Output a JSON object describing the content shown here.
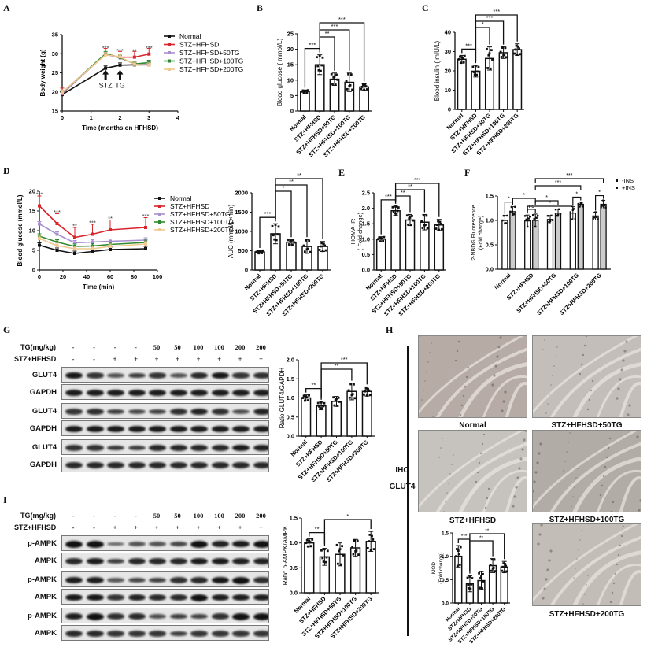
{
  "panels": {
    "A": "A",
    "B": "B",
    "C": "C",
    "D": "D",
    "E": "E",
    "F": "F",
    "G": "G",
    "H": "H",
    "I": "I"
  },
  "groups": [
    "Normal",
    "STZ+HFHSD",
    "STZ+HFHSD+50TG",
    "STZ+HFHSD+100TG",
    "STZ+HFHSD+200TG"
  ],
  "colors": {
    "Normal": "#111111",
    "STZ+HFHSD": "#d9252c",
    "STZ+HFHSD+50TG": "#a88fd0",
    "STZ+HFHSD+100TG": "#2e8a2e",
    "STZ+HFHSD+200TG": "#f0c890"
  },
  "chart_data": [
    {
      "id": "A",
      "type": "line",
      "title": "",
      "xlabel": "Time (months on HFHSD)",
      "ylabel": "Body weight (g)",
      "xlim": [
        0,
        4
      ],
      "ylim": [
        15,
        35
      ],
      "xticks": [
        0,
        1,
        2,
        3,
        4
      ],
      "yticks": [
        15,
        20,
        25,
        30,
        35
      ],
      "x": [
        0,
        1.5,
        2,
        2.5,
        3
      ],
      "series": [
        {
          "name": "Normal",
          "values": [
            19.3,
            26.2,
            27.0,
            27.1,
            27.1
          ]
        },
        {
          "name": "STZ+HFHSD",
          "values": [
            19.5,
            29.9,
            29.1,
            29.1,
            29.9
          ]
        },
        {
          "name": "STZ+HFHSD+50TG",
          "values": [
            19.6,
            29.8,
            28.9,
            27.4,
            27.2
          ]
        },
        {
          "name": "STZ+HFHSD+100TG",
          "values": [
            19.8,
            30.0,
            29.0,
            27.3,
            27.7
          ]
        },
        {
          "name": "STZ+HFHSD+200TG",
          "values": [
            19.9,
            29.7,
            29.2,
            27.2,
            27.0
          ]
        }
      ],
      "annotations": [
        {
          "x": 1.5,
          "text": "***"
        },
        {
          "x": 2,
          "text": "***"
        },
        {
          "x": 2.5,
          "text": "**"
        },
        {
          "x": 3,
          "text": "***"
        },
        {
          "x": 1.5,
          "text": "STZ",
          "arrow": true
        },
        {
          "x": 2,
          "text": "TG",
          "arrow": true
        }
      ],
      "legend": [
        "Normal",
        "STZ+HFHSD",
        "STZ+HFHSD+50TG",
        "STZ+HFHSD+100TG",
        "STZ+HFHSD+200TG"
      ],
      "legend_position": "right"
    },
    {
      "id": "B",
      "type": "bar",
      "ylabel": "Blood glucose ( mmol/L)",
      "ylim": [
        0,
        25
      ],
      "yticks": [
        0,
        5,
        10,
        15,
        20,
        25
      ],
      "categories": [
        "Normal",
        "STZ+HFHSD",
        "STZ+HFHSD+50TG",
        "STZ+HFHSD+100TG",
        "STZ+HFHSD+200TG"
      ],
      "values": [
        6.3,
        15.0,
        10.3,
        9.3,
        7.8
      ],
      "errors": [
        0.5,
        3.2,
        2.0,
        3.0,
        1.0
      ],
      "significance": [
        {
          "from": 0,
          "to": 1,
          "label": "***"
        },
        {
          "from": 1,
          "to": 2,
          "label": "**"
        },
        {
          "from": 1,
          "to": 3,
          "label": "***"
        },
        {
          "from": 1,
          "to": 4,
          "label": "***"
        }
      ]
    },
    {
      "id": "C",
      "type": "bar",
      "ylabel": "Blood insulin ( mIU/L)",
      "ylim": [
        0,
        40
      ],
      "yticks": [
        0,
        10,
        20,
        30,
        40
      ],
      "categories": [
        "Normal",
        "STZ+HFHSD",
        "STZ+HFHSD+50TG",
        "STZ+HFHSD+100TG",
        "STZ+HFHSD+200TG"
      ],
      "values": [
        26.0,
        19.8,
        26.4,
        29.4,
        31.0
      ],
      "errors": [
        2.0,
        3.0,
        6.0,
        3.0,
        3.0
      ],
      "significance": [
        {
          "from": 0,
          "to": 1,
          "label": "***"
        },
        {
          "from": 1,
          "to": 2,
          "label": "*"
        },
        {
          "from": 1,
          "to": 3,
          "label": "***"
        },
        {
          "from": 1,
          "to": 4,
          "label": "***"
        }
      ]
    },
    {
      "id": "D",
      "type": "line",
      "xlabel": "Time (min)",
      "ylabel": "Blood glucose (mmol/L)",
      "xlim": [
        0,
        100
      ],
      "ylim": [
        0,
        20
      ],
      "xticks": [
        0,
        20,
        40,
        60,
        80,
        100
      ],
      "yticks": [
        0,
        5,
        10,
        15,
        20
      ],
      "x": [
        0,
        15,
        30,
        45,
        60,
        90
      ],
      "series": [
        {
          "name": "Normal",
          "values": [
            6.3,
            5.0,
            4.2,
            4.7,
            5.2,
            5.4
          ]
        },
        {
          "name": "STZ+HFHSD",
          "values": [
            16.3,
            11.8,
            8.3,
            9.1,
            10.2,
            10.8
          ]
        },
        {
          "name": "STZ+HFHSD+50TG",
          "values": [
            11.7,
            9.1,
            6.9,
            7.1,
            7.3,
            7.6
          ]
        },
        {
          "name": "STZ+HFHSD+100TG",
          "values": [
            8.6,
            7.1,
            6.0,
            6.1,
            6.5,
            7.0
          ]
        },
        {
          "name": "STZ+HFHSD+200TG",
          "values": [
            8.0,
            6.2,
            5.4,
            5.4,
            6.0,
            6.6
          ]
        }
      ],
      "annotations": [
        {
          "x": 0,
          "text": "***"
        },
        {
          "x": 15,
          "text": "***"
        },
        {
          "x": 30,
          "text": "**"
        },
        {
          "x": 45,
          "text": "***"
        },
        {
          "x": 60,
          "text": "**"
        },
        {
          "x": 90,
          "text": "***"
        }
      ],
      "legend": [
        "Normal",
        "STZ+HFHSD",
        "STZ+HFHSD+50TG",
        "STZ+HFHSD+100TG",
        "STZ+HFHSD+200TG"
      ],
      "legend_position": "right"
    },
    {
      "id": "D-AUC",
      "type": "bar",
      "ylabel": "AUC (mmol/L×min)",
      "ylim": [
        0,
        2000
      ],
      "yticks": [
        0,
        500,
        1000,
        1500,
        2000
      ],
      "categories": [
        "Normal",
        "STZ+HFHSD",
        "STZ+HFHSD+50TG",
        "STZ+HFHSD+100TG",
        "STZ+HFHSD+200TG"
      ],
      "values": [
        470,
        940,
        720,
        610,
        610
      ],
      "errors": [
        40,
        260,
        70,
        180,
        130
      ],
      "significance": [
        {
          "from": 0,
          "to": 1,
          "label": "***"
        },
        {
          "from": 1,
          "to": 2,
          "label": "*"
        },
        {
          "from": 1,
          "to": 3,
          "label": "**"
        },
        {
          "from": 1,
          "to": 4,
          "label": "**"
        }
      ]
    },
    {
      "id": "E",
      "type": "bar",
      "ylabel": "HOMA-IR ( Fold change)",
      "ylim": [
        0,
        2.5
      ],
      "yticks": [
        0.0,
        0.5,
        1.0,
        1.5,
        2.0,
        2.5
      ],
      "categories": [
        "Normal",
        "STZ+HFHSD",
        "STZ+HFHSD+50TG",
        "STZ+HFHSD+100TG",
        "STZ+HFHSD+200TG"
      ],
      "values": [
        1.0,
        1.92,
        1.62,
        1.55,
        1.46
      ],
      "errors": [
        0.08,
        0.15,
        0.18,
        0.25,
        0.18
      ],
      "significance": [
        {
          "from": 0,
          "to": 1,
          "label": "***"
        },
        {
          "from": 1,
          "to": 2,
          "label": "**"
        },
        {
          "from": 1,
          "to": 3,
          "label": "**"
        },
        {
          "from": 1,
          "to": 4,
          "label": "***"
        }
      ]
    },
    {
      "id": "F",
      "type": "bar",
      "ylabel": "2-NBDG Fluorescence (Fold change)",
      "ylim": [
        0,
        1.5
      ],
      "yticks": [
        0.0,
        0.5,
        1.0,
        1.5
      ],
      "categories": [
        "Normal",
        "STZ+HFHSD",
        "STZ+HFHSD+50TG",
        "STZ+HFHSD+100TG",
        "STZ+HFHSD+200TG"
      ],
      "series": [
        {
          "name": "-INS",
          "values": [
            1.0,
            0.99,
            1.02,
            1.15,
            1.09
          ],
          "errors": [
            0.1,
            0.12,
            0.08,
            0.13,
            0.08
          ],
          "color": "#ffffff"
        },
        {
          "name": "+INS",
          "values": [
            1.18,
            1.0,
            1.15,
            1.33,
            1.33
          ],
          "errors": [
            0.1,
            0.13,
            0.08,
            0.05,
            0.08
          ],
          "color": "#cccccc"
        }
      ],
      "significance": [
        {
          "label": "*"
        },
        {
          "label": "ns"
        },
        {
          "label": "*"
        },
        {
          "label": "*"
        },
        {
          "label": "*"
        },
        {
          "label": "*"
        },
        {
          "label": "*"
        },
        {
          "label": "***"
        },
        {
          "label": "***"
        }
      ],
      "legend": [
        "-INS",
        "+INS"
      ],
      "legend_position": "top-right"
    },
    {
      "id": "G-ratio",
      "type": "bar",
      "ylabel": "Ratio GLUT4/GAPDH",
      "ylim": [
        0,
        2.0
      ],
      "yticks": [
        0.0,
        0.5,
        1.0,
        1.5,
        2.0
      ],
      "categories": [
        "Normal",
        "STZ+HFHSD",
        "STZ+HFHSD+50TG",
        "STZ+HFHSD+100TG",
        "STZ+HFHSD+200TG"
      ],
      "values": [
        1.0,
        0.79,
        0.91,
        1.17,
        1.17
      ],
      "errors": [
        0.08,
        0.1,
        0.13,
        0.22,
        0.12
      ],
      "significance": [
        {
          "from": 0,
          "to": 1,
          "label": "**"
        },
        {
          "from": 1,
          "to": 3,
          "label": "**"
        },
        {
          "from": 1,
          "to": 4,
          "label": "***"
        }
      ]
    },
    {
      "id": "H-MOD",
      "type": "bar",
      "ylabel": "MOD (Fold change)",
      "ylim": [
        0,
        1.5
      ],
      "yticks": [
        0.0,
        0.5,
        1.0,
        1.5
      ],
      "categories": [
        "Normal",
        "STZ+HFHSD",
        "STZ+HFHSD+50TG",
        "STZ+HFHSD+100TG",
        "STZ+HFHSD+200TG"
      ],
      "values": [
        1.0,
        0.41,
        0.48,
        0.8,
        0.77
      ],
      "errors": [
        0.23,
        0.17,
        0.19,
        0.15,
        0.12
      ],
      "significance": [
        {
          "from": 0,
          "to": 1,
          "label": "***"
        },
        {
          "from": 1,
          "to": 3,
          "label": "**"
        },
        {
          "from": 1,
          "to": 4,
          "label": "**"
        }
      ]
    },
    {
      "id": "I-ratio",
      "type": "bar",
      "ylabel": "Ratio p-AMPK/AMPK",
      "ylim": [
        0,
        1.5
      ],
      "yticks": [
        0.0,
        0.5,
        1.0,
        1.5
      ],
      "categories": [
        "Normal",
        "STZ+HFHSD",
        "STZ+HFHSD+50TG",
        "STZ+HFHSD+100TG",
        "STZ+HFHSD+200TG"
      ],
      "values": [
        1.0,
        0.72,
        0.77,
        0.9,
        1.03
      ],
      "errors": [
        0.08,
        0.17,
        0.23,
        0.17,
        0.2
      ],
      "significance": [
        {
          "from": 0,
          "to": 1,
          "label": "**"
        },
        {
          "from": 1,
          "to": 4,
          "label": "*"
        }
      ]
    }
  ],
  "blots": {
    "G": {
      "tg_label": "TG(mg/kg)",
      "stz_label": "STZ+HFHSD",
      "tg_values": [
        "-",
        "-",
        "-",
        "-",
        "50",
        "50",
        "100",
        "100",
        "200",
        "200"
      ],
      "stz_values": [
        "-",
        "-",
        "+",
        "+",
        "+",
        "+",
        "+",
        "+",
        "+",
        "+"
      ],
      "rows": [
        "GLUT4",
        "GAPDH",
        "GLUT4",
        "GAPDH",
        "GLUT4",
        "GAPDH"
      ],
      "intensity": [
        [
          0.95,
          0.7,
          0.45,
          0.65,
          0.7,
          0.45,
          0.8,
          0.95,
          0.7,
          0.75
        ],
        [
          0.9,
          0.9,
          0.9,
          0.9,
          0.9,
          0.9,
          0.9,
          0.9,
          0.9,
          0.9
        ],
        [
          0.7,
          0.75,
          0.65,
          0.55,
          0.6,
          0.75,
          0.85,
          0.75,
          0.5,
          0.85
        ],
        [
          0.9,
          0.9,
          0.9,
          0.9,
          0.9,
          0.9,
          0.9,
          0.9,
          0.9,
          0.9
        ],
        [
          0.7,
          0.7,
          0.65,
          0.6,
          0.8,
          0.8,
          0.8,
          0.8,
          0.9,
          0.85
        ],
        [
          0.8,
          0.8,
          0.8,
          0.8,
          0.8,
          0.8,
          0.8,
          0.8,
          0.8,
          0.8
        ]
      ]
    },
    "I": {
      "tg_label": "TG(mg/kg)",
      "stz_label": "STZ+HFHSD",
      "tg_values": [
        "-",
        "-",
        "-",
        "-",
        "50",
        "50",
        "100",
        "100",
        "200",
        "200"
      ],
      "stz_values": [
        "-",
        "-",
        "+",
        "+",
        "+",
        "+",
        "+",
        "+",
        "+",
        "+"
      ],
      "rows": [
        "p-AMPK",
        "AMPK",
        "p-AMPK",
        "AMPK",
        "p-AMPK",
        "AMPK"
      ],
      "intensity": [
        [
          1.0,
          1.0,
          0.3,
          0.45,
          0.45,
          0.55,
          1.0,
          0.85,
          0.9,
          1.0
        ],
        [
          0.8,
          0.9,
          0.6,
          0.8,
          0.8,
          0.8,
          0.9,
          0.9,
          0.85,
          0.85
        ],
        [
          0.9,
          0.9,
          0.4,
          0.55,
          0.6,
          0.75,
          0.8,
          0.95,
          1.0,
          0.75
        ],
        [
          0.95,
          0.95,
          0.7,
          0.85,
          0.8,
          0.8,
          1.0,
          0.9,
          0.9,
          0.9
        ],
        [
          0.9,
          1.0,
          0.75,
          0.8,
          0.5,
          0.65,
          0.6,
          0.75,
          1.0,
          1.0
        ],
        [
          0.8,
          0.8,
          0.7,
          0.7,
          0.7,
          0.65,
          0.7,
          0.7,
          0.7,
          0.7
        ]
      ]
    }
  },
  "ihc": {
    "side_label_1": "IHC",
    "side_label_2": "GLUT4",
    "images": [
      {
        "caption": "Normal",
        "tone": "#b7aba5"
      },
      {
        "caption": "STZ+HFHSD+50TG",
        "tone": "#c3beb9"
      },
      {
        "caption": "STZ+HFHSD",
        "tone": "#c6c2bd"
      },
      {
        "caption": "STZ+HFHSD+100TG",
        "tone": "#b2aca6"
      },
      {
        "caption": "STZ+HFHSD+200TG",
        "tone": "#c2bdb6"
      }
    ]
  }
}
